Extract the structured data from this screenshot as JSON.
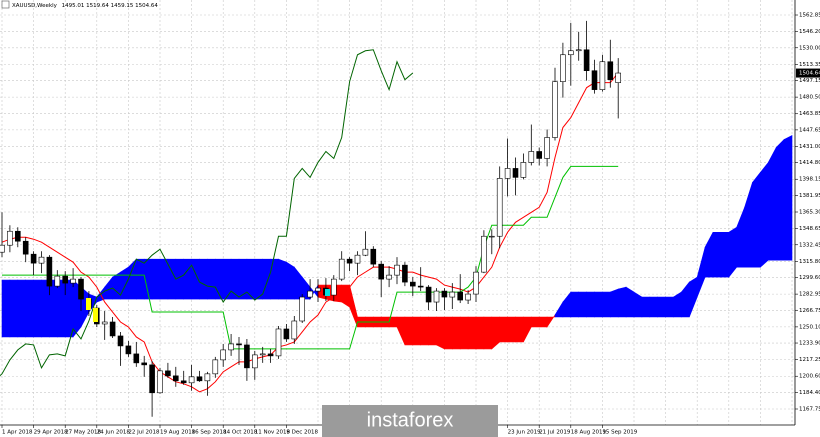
{
  "chart_data": {
    "type": "candlestick",
    "symbol": "XAUUSD,Weekly",
    "watermark": "instaforex",
    "categories": [
      "1 Apr 2018",
      null,
      null,
      null,
      "29 Apr 2018",
      null,
      null,
      null,
      "27 May 2018",
      null,
      null,
      null,
      "24 Jun 2018",
      null,
      null,
      null,
      "22 Jul 2018",
      null,
      null,
      null,
      "19 Aug 2018",
      null,
      null,
      null,
      "16 Sep 2018",
      null,
      null,
      null,
      "14 Oct 2018",
      null,
      null,
      null,
      "11 Nov 2018",
      null,
      null,
      null,
      "9 Dec 2018",
      null,
      null,
      null,
      null,
      null,
      null,
      null,
      null,
      null,
      null,
      null,
      null,
      null,
      null,
      null,
      null,
      null,
      null,
      null,
      null,
      null,
      null,
      null,
      null,
      null,
      null,
      null,
      "23 Jun 2019",
      null,
      null,
      null,
      "21 Jul 2019",
      null,
      null,
      null,
      "18 Aug 2019",
      null,
      null,
      null,
      "15 Sep 2019",
      null,
      null,
      null,
      null,
      null,
      null,
      null,
      null,
      null,
      null,
      null,
      null,
      null,
      null,
      null,
      null,
      null,
      null,
      null,
      null,
      null,
      null,
      null,
      null,
      null
    ],
    "open": [
      1325,
      1332,
      1346,
      1336,
      1323,
      1314,
      1320,
      1291,
      1301,
      1294,
      1298,
      1278,
      1269,
      1253,
      1255,
      1241,
      1231,
      1223,
      1214,
      1212,
      1184,
      1206,
      1201,
      1196,
      1194,
      1200,
      1196,
      1203,
      1217,
      1227,
      1233,
      1232,
      1209,
      1222,
      1223,
      1221,
      1248,
      1238,
      1256,
      1280,
      1286,
      1289,
      1282,
      1298,
      1318,
      1314,
      1322,
      1328,
      1313,
      1298,
      1302,
      1312,
      1295,
      1291,
      1290,
      1275,
      1286,
      1280,
      1285,
      1277,
      1283,
      1305,
      1341,
      1341,
      1399,
      1409,
      1400,
      1415,
      1426,
      1419,
      1440,
      1496,
      1523,
      1527,
      1528,
      1507,
      1488,
      1516,
      1495.01,
      null,
      null,
      null,
      null,
      null,
      null,
      null,
      null,
      null,
      null,
      null,
      null,
      null,
      null,
      null,
      null,
      null,
      null,
      null,
      null,
      null,
      null,
      null
    ],
    "high": [
      1365,
      1352,
      1350,
      1340,
      1326,
      1326,
      1322,
      1307,
      1306,
      1309,
      1300,
      1286,
      1272,
      1266,
      1260,
      1245,
      1236,
      1235,
      1221,
      1216,
      1209,
      1214,
      1210,
      1206,
      1212,
      1206,
      1205,
      1220,
      1233,
      1243,
      1240,
      1238,
      1226,
      1230,
      1228,
      1251,
      1253,
      1261,
      1283,
      1298,
      1298,
      1299,
      1302,
      1326,
      1320,
      1326,
      1346,
      1331,
      1316,
      1311,
      1320,
      1315,
      1300,
      1310,
      1292,
      1289,
      1289,
      1294,
      1303,
      1287,
      1311,
      1347,
      1348,
      1411,
      1439,
      1420,
      1424,
      1453,
      1430,
      1448,
      1510,
      1535,
      1555,
      1546,
      1557,
      1518,
      1523,
      1538,
      1519.64,
      null,
      null,
      null,
      null,
      null,
      null,
      null,
      null,
      null,
      null,
      null,
      null,
      null,
      null,
      null,
      null,
      null,
      null,
      null,
      null,
      null,
      null,
      null
    ],
    "low": [
      1320,
      1325,
      1330,
      1315,
      1302,
      1304,
      1282,
      1289,
      1282,
      1290,
      1266,
      1261,
      1250,
      1237,
      1239,
      1211,
      1220,
      1210,
      1200,
      1160,
      1183,
      1199,
      1190,
      1192,
      1186,
      1195,
      1181,
      1199,
      1210,
      1221,
      1212,
      1196,
      1197,
      1214,
      1214,
      1218,
      1235,
      1233,
      1254,
      1278,
      1275,
      1276,
      1276,
      1296,
      1306,
      1302,
      1321,
      1310,
      1280,
      1290,
      1293,
      1291,
      1281,
      1286,
      1267,
      1266,
      1267,
      1268,
      1274,
      1273,
      1275,
      1304,
      1323,
      1329,
      1381,
      1382,
      1398,
      1412,
      1412,
      1411,
      1437,
      1480,
      1492,
      1517,
      1497,
      1484,
      1486,
      1490,
      1459.15,
      null,
      null,
      null,
      null,
      null,
      null,
      null,
      null,
      null,
      null,
      null,
      null,
      null,
      null,
      null,
      null,
      null,
      null,
      null,
      null,
      null,
      null,
      null
    ],
    "close": [
      1332,
      1346,
      1336,
      1323,
      1314,
      1320,
      1291,
      1301,
      1294,
      1298,
      1278,
      1269,
      1253,
      1255,
      1241,
      1231,
      1223,
      1214,
      1212,
      1184,
      1206,
      1201,
      1196,
      1194,
      1200,
      1196,
      1203,
      1217,
      1227,
      1233,
      1232,
      1209,
      1222,
      1223,
      1221,
      1248,
      1238,
      1256,
      1280,
      1286,
      1289,
      1282,
      1298,
      1318,
      1314,
      1322,
      1328,
      1313,
      1298,
      1302,
      1312,
      1295,
      1291,
      1290,
      1275,
      1286,
      1280,
      1285,
      1277,
      1283,
      1305,
      1341,
      1341,
      1399,
      1409,
      1400,
      1415,
      1426,
      1419,
      1440,
      1496,
      1523,
      1527,
      1528,
      1507,
      1488,
      1516,
      1498,
      1504.64,
      null,
      null,
      null,
      null,
      null,
      null,
      null,
      null,
      null,
      null,
      null,
      null,
      null,
      null,
      null,
      null,
      null,
      null,
      null,
      null,
      null,
      null,
      null
    ],
    "up_color": "#ffffff",
    "down_color": "#000000",
    "lagging_color": "#006400",
    "series": [
      {
        "color": "#ff0000",
        "values": [
          1335,
          1338,
          1340,
          1340,
          1338,
          1335,
          1330,
          1325,
          1320,
          1315,
          1305,
          1300,
          1290,
          1275,
          1265,
          1255,
          1250,
          1240,
          1235,
          1215,
          1205,
          1200,
          1195,
          1193,
          1190,
          1185,
          1188,
          1195,
          1205,
          1210,
          1215,
          1215,
          1218,
          1220,
          1222,
          1230,
          1232,
          1235,
          1245,
          1255,
          1262,
          1275,
          1280,
          1285,
          1290,
          1300,
          1305,
          1310,
          1310,
          1310,
          1308,
          1305,
          1305,
          1302,
          1300,
          1298,
          1292,
          1290,
          1288,
          1285,
          1290,
          1300,
          1310,
          1330,
          1345,
          1355,
          1360,
          1365,
          1370,
          1385,
          1420,
          1450,
          1460,
          1475,
          1490,
          1495,
          1495,
          1495,
          1505,
          null,
          null,
          null,
          null,
          null,
          null,
          null,
          null,
          null,
          null,
          null,
          null,
          null,
          null,
          null,
          null,
          null,
          null,
          null,
          null,
          null,
          null,
          null
        ]
      },
      {
        "color": "#00c000",
        "values": [
          1302,
          1302,
          1302,
          1302,
          1302,
          1302,
          1302,
          1302,
          1302,
          1302,
          1302,
          1302,
          1302,
          1302,
          1302,
          1302,
          1302,
          1302,
          1302,
          1265,
          1265,
          1265,
          1265,
          1265,
          1265,
          1265,
          1265,
          1265,
          1265,
          1228,
          1228,
          1228,
          1228,
          1228,
          1228,
          1228,
          1228,
          1228,
          1228,
          1228,
          1228,
          1228,
          1228,
          1228,
          1228,
          1255,
          1255,
          1255,
          1255,
          1255,
          1285,
          1285,
          1285,
          1285,
          1285,
          1285,
          1285,
          1285,
          1285,
          1290,
          1300,
          1330,
          1352,
          1352,
          1352,
          1352,
          1352,
          1360,
          1360,
          1360,
          1380,
          1400,
          1411,
          1411,
          1411,
          1411,
          1411,
          1411,
          1411,
          null,
          null,
          null,
          null,
          null,
          null,
          null,
          null,
          null,
          null,
          null,
          null,
          null,
          null,
          null,
          null,
          null,
          null,
          null,
          null,
          null,
          null,
          null
        ]
      }
    ],
    "cloud": {
      "up_color": "#0000ff",
      "down_color": "#ff0000",
      "span_a": [
        1297,
        1297,
        1297,
        1297,
        1297,
        1297,
        1297,
        1297,
        1297,
        1297,
        1290,
        1283,
        1280,
        1290,
        1300,
        1305,
        1310,
        1318,
        1318,
        1318,
        1318,
        1318,
        1318,
        1318,
        1318,
        1318,
        1318,
        1318,
        1318,
        1318,
        1318,
        1318,
        1318,
        1318,
        1318,
        1318,
        1315,
        1310,
        1300,
        1290,
        1280,
        1278,
        1276,
        1275,
        1270,
        1250,
        1250,
        1250,
        1250,
        1250,
        1250,
        1232,
        1232,
        1232,
        1232,
        1232,
        1228,
        1228,
        1228,
        1228,
        1228,
        1228,
        1228,
        1235,
        1235,
        1235,
        1235,
        1250,
        1250,
        1250,
        1262,
        1275,
        1285,
        1285,
        1285,
        1285,
        1285,
        1285,
        1288,
        1290,
        1285,
        1280,
        1280,
        1280,
        1280,
        1280,
        1285,
        1295,
        1300,
        1330,
        1345,
        1345,
        1345,
        1350,
        1370,
        1395,
        1405,
        1415,
        1430,
        1438,
        1442
      ],
      "span_b": [
        1240,
        1240,
        1240,
        1240,
        1240,
        1240,
        1240,
        1240,
        1240,
        1240,
        1250,
        1265,
        1275,
        1278,
        1278,
        1278,
        1278,
        1278,
        1278,
        1278,
        1278,
        1278,
        1278,
        1278,
        1278,
        1278,
        1278,
        1278,
        1278,
        1278,
        1278,
        1278,
        1278,
        1278,
        1278,
        1278,
        1278,
        1278,
        1278,
        1278,
        1292,
        1292,
        1292,
        1292,
        1292,
        1260,
        1260,
        1260,
        1260,
        1260,
        1260,
        1260,
        1260,
        1260,
        1260,
        1260,
        1260,
        1260,
        1260,
        1260,
        1260,
        1260,
        1260,
        1260,
        1260,
        1260,
        1260,
        1260,
        1260,
        1260,
        1260,
        1260,
        1260,
        1260,
        1260,
        1260,
        1260,
        1260,
        1260,
        1260,
        1260,
        1260,
        1260,
        1260,
        1260,
        1260,
        1260,
        1260,
        1280,
        1300,
        1300,
        1300,
        1300,
        1310,
        1310,
        1310,
        1310,
        1317,
        1317,
        1317,
        1317
      ]
    },
    "ylim": [
      1151.7,
      1577.9
    ],
    "yticks": [
      1562.85,
      {
        "value": 1546.2,
        "label": "1546.20"
      },
      {
        "value": 1530,
        "label": "1530.00"
      },
      1513.35,
      {
        "value": 1497.15,
        "label": "1497.15"
      },
      {
        "value": 1480.5,
        "label": "1480.50"
      },
      1463.85,
      1447.65,
      {
        "value": 1431,
        "label": "1431.00"
      },
      {
        "value": 1414.8,
        "label": "1414.80"
      },
      1398.15,
      1381.95,
      {
        "value": 1365.3,
        "label": "1365.30"
      },
      1348.65,
      1332.45,
      {
        "value": 1315.8,
        "label": "1315.80"
      },
      {
        "value": 1299.6,
        "label": "1299.60"
      },
      1282.95,
      {
        "value": 1266.75,
        "label": "1266.75"
      },
      {
        "value": 1250.1,
        "label": "1250.10"
      },
      {
        "value": 1233.9,
        "label": "1233.90"
      },
      1217.25,
      {
        "value": 1200.6,
        "label": "1200.60"
      },
      {
        "value": 1184.4,
        "label": "1184.40"
      },
      1167.75
    ],
    "grid": true
  }
}
